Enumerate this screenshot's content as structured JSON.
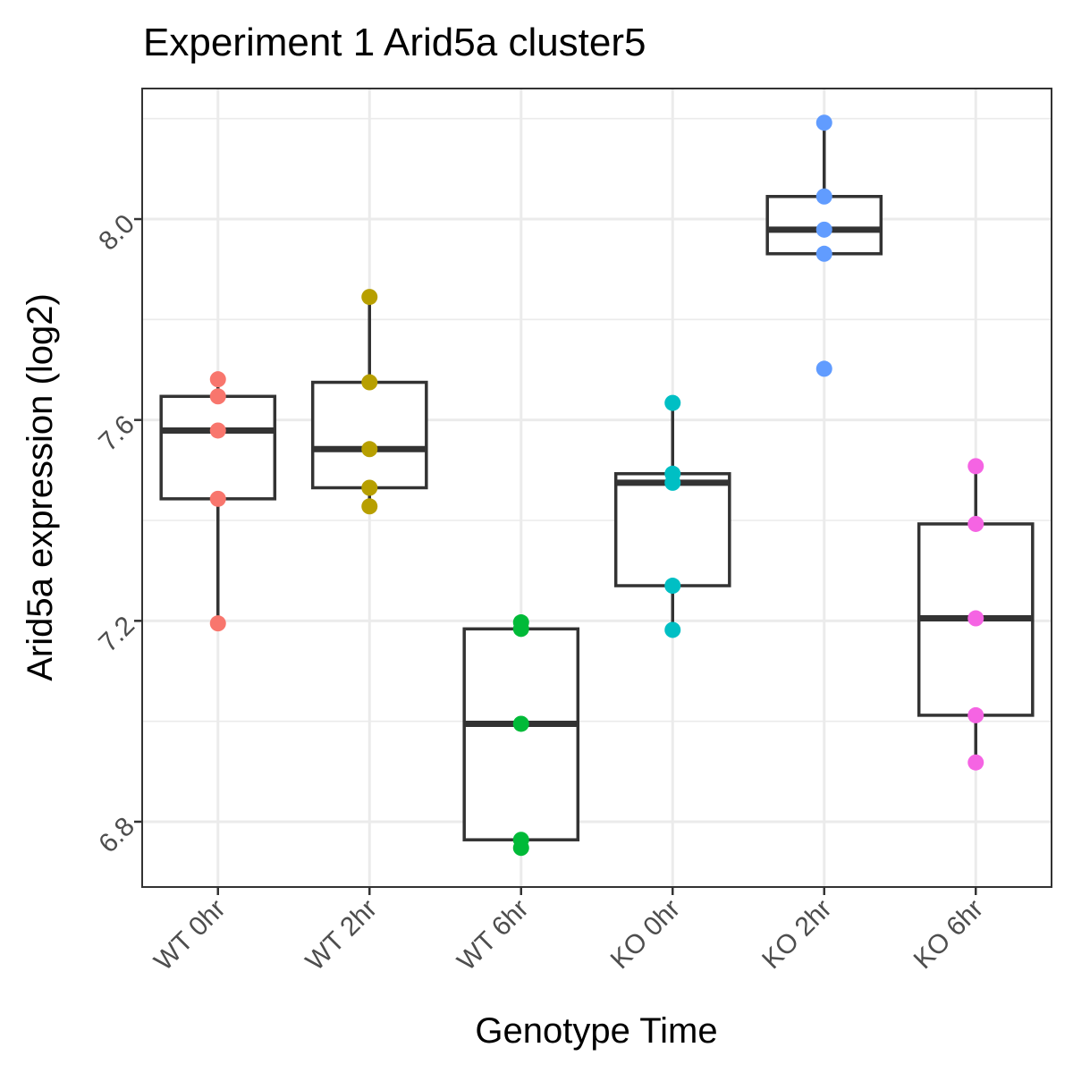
{
  "chart_data": {
    "type": "boxplot",
    "title": "Experiment 1 Arid5a cluster5",
    "xlabel": "Genotype Time",
    "ylabel": "Arid5a expression (log2)",
    "ylim": [
      6.67,
      8.26
    ],
    "yticks": [
      "6.8",
      "7.2",
      "7.6",
      "8.0"
    ],
    "grid": true,
    "categories": [
      "WT 0hr",
      "WT 2hr",
      "WT 6hr",
      "KO 0hr",
      "KO 2hr",
      "KO 6hr"
    ],
    "colors": [
      "#F8766D",
      "#B79F00",
      "#00BA38",
      "#00BFC4",
      "#619CFF",
      "#F564E3"
    ],
    "boxes": [
      {
        "q1": 7.443,
        "median": 7.579,
        "q3": 7.647,
        "whisker_low": 7.195,
        "whisker_high": 7.681
      },
      {
        "q1": 7.465,
        "median": 7.542,
        "q3": 7.675,
        "whisker_low": 7.428,
        "whisker_high": 7.845
      },
      {
        "q1": 6.764,
        "median": 6.995,
        "q3": 7.184,
        "whisker_low": 6.748,
        "whisker_high": 7.197
      },
      {
        "q1": 7.27,
        "median": 7.475,
        "q3": 7.493,
        "whisker_low": 7.182,
        "whisker_high": 7.634
      },
      {
        "q1": 7.931,
        "median": 7.979,
        "q3": 8.045,
        "whisker_low": 7.929,
        "whisker_high": 8.192
      },
      {
        "q1": 7.012,
        "median": 7.205,
        "q3": 7.393,
        "whisker_low": 6.918,
        "whisker_high": 7.508
      }
    ],
    "points": [
      [
        7.681,
        7.647,
        7.579,
        7.443,
        7.195
      ],
      [
        7.845,
        7.675,
        7.542,
        7.465,
        7.428
      ],
      [
        7.197,
        7.184,
        6.995,
        6.764,
        6.748
      ],
      [
        7.634,
        7.493,
        7.475,
        7.27,
        7.182
      ],
      [
        8.192,
        8.045,
        7.979,
        7.931,
        7.702
      ],
      [
        7.508,
        7.393,
        7.205,
        7.012,
        6.918
      ]
    ]
  }
}
